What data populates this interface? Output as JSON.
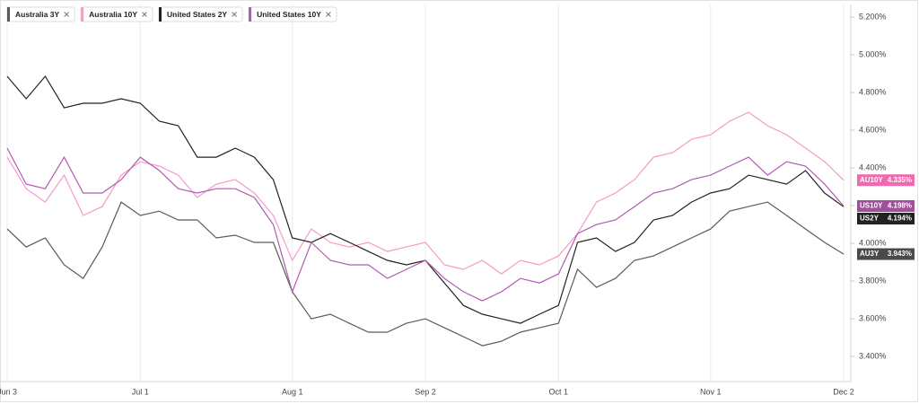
{
  "chart_data": {
    "type": "line",
    "categories": [
      "Jun 3",
      null,
      null,
      null,
      null,
      null,
      null,
      "Jul 1",
      null,
      null,
      null,
      null,
      null,
      null,
      null,
      "Aug 1",
      null,
      null,
      null,
      null,
      null,
      null,
      "Sep 2",
      null,
      null,
      null,
      null,
      null,
      null,
      "Oct 1",
      null,
      null,
      null,
      null,
      null,
      null,
      null,
      "Nov 1",
      null,
      null,
      null,
      null,
      null,
      null,
      "Dec 2"
    ],
    "ylim": [
      3.267,
      5.267
    ],
    "yticks": [
      {
        "value": 3.4,
        "label": "3.400%"
      },
      {
        "value": 3.6,
        "label": "3.600%"
      },
      {
        "value": 3.8,
        "label": "3.800%"
      },
      {
        "value": 4.0,
        "label": "4.000%"
      },
      {
        "value": 4.2,
        "label": "4.200%"
      },
      {
        "value": 4.4,
        "label": "4.400%"
      },
      {
        "value": 4.6,
        "label": "4.600%"
      },
      {
        "value": 4.8,
        "label": "4.800%"
      },
      {
        "value": 5.0,
        "label": "5.000%"
      },
      {
        "value": 5.2,
        "label": "5.200%"
      }
    ],
    "series": [
      {
        "name": "Australia 3Y",
        "color": "#5a5a5a",
        "tag": "AU3Y",
        "tag_color": "#4a4a4a",
        "last_label": "3.943%",
        "values": [
          4.076,
          3.981,
          4.029,
          3.886,
          3.814,
          3.981,
          4.219,
          4.148,
          4.171,
          4.124,
          4.124,
          4.029,
          4.043,
          4.005,
          4.005,
          3.743,
          3.6,
          3.624,
          3.576,
          3.529,
          3.529,
          3.576,
          3.6,
          3.552,
          3.505,
          3.457,
          3.481,
          3.529,
          3.552,
          3.576,
          3.862,
          3.767,
          3.814,
          3.91,
          3.933,
          3.981,
          4.029,
          4.076,
          4.171,
          4.195,
          4.219,
          4.148,
          4.076,
          4.005,
          3.943
        ]
      },
      {
        "name": "Australia 10Y",
        "color": "#f49ac9",
        "tag": "AU10Y",
        "tag_color": "#f06aaf",
        "last_label": "4.335%",
        "values": [
          4.457,
          4.29,
          4.219,
          4.362,
          4.148,
          4.195,
          4.362,
          4.433,
          4.41,
          4.362,
          4.243,
          4.314,
          4.338,
          4.267,
          4.148,
          3.91,
          4.076,
          4.005,
          3.981,
          4.005,
          3.957,
          3.981,
          4.005,
          3.886,
          3.862,
          3.91,
          3.838,
          3.91,
          3.886,
          3.933,
          4.052,
          4.219,
          4.267,
          4.338,
          4.457,
          4.481,
          4.552,
          4.576,
          4.648,
          4.695,
          4.624,
          4.576,
          4.505,
          4.433,
          4.335
        ]
      },
      {
        "name": "United States 2Y",
        "color": "#222222",
        "tag": "US2Y",
        "tag_color": "#222222",
        "last_label": "4.194%",
        "values": [
          4.886,
          4.767,
          4.886,
          4.719,
          4.743,
          4.743,
          4.767,
          4.743,
          4.648,
          4.624,
          4.457,
          4.457,
          4.505,
          4.457,
          4.338,
          4.029,
          4.005,
          4.052,
          4.005,
          3.957,
          3.91,
          3.886,
          3.91,
          3.79,
          3.671,
          3.624,
          3.6,
          3.576,
          3.624,
          3.671,
          4.005,
          4.029,
          3.957,
          4.005,
          4.124,
          4.148,
          4.219,
          4.267,
          4.29,
          4.362,
          4.338,
          4.314,
          4.386,
          4.267,
          4.194
        ]
      },
      {
        "name": "United States 10Y",
        "color": "#b05cb0",
        "tag": "US10Y",
        "tag_color": "#a0509d",
        "last_label": "4.198%",
        "values": [
          4.505,
          4.314,
          4.29,
          4.457,
          4.267,
          4.267,
          4.338,
          4.457,
          4.386,
          4.29,
          4.267,
          4.29,
          4.29,
          4.243,
          4.1,
          3.743,
          4.005,
          3.91,
          3.886,
          3.886,
          3.814,
          3.862,
          3.91,
          3.814,
          3.743,
          3.695,
          3.743,
          3.814,
          3.79,
          3.838,
          4.052,
          4.1,
          4.124,
          4.195,
          4.267,
          4.29,
          4.338,
          4.362,
          4.41,
          4.457,
          4.362,
          4.433,
          4.41,
          4.314,
          4.198
        ]
      }
    ]
  }
}
